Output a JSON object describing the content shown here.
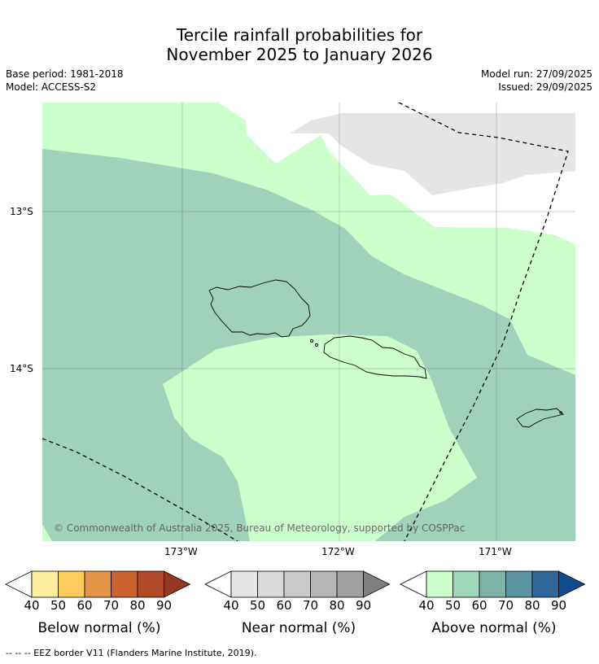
{
  "title": {
    "line1": "Tercile rainfall probabilities for",
    "line2": "November 2025 to January 2026"
  },
  "meta": {
    "base_period": "Base period: 1981-2018",
    "model": "Model: ACCESS-S2",
    "model_run": "Model run: 27/09/2025",
    "issued": "Issued: 29/09/2025"
  },
  "map": {
    "lat_labels": [
      "13°S",
      "14°S"
    ],
    "lon_labels": [
      "173°W",
      "172°W",
      "171°W"
    ],
    "copyright": "© Commonwealth of Australia 2025, Bureau of Meteorology, supported by COSPPac",
    "colors": {
      "above_50": "#9fd1bb",
      "above_40": "#ccffcc",
      "near_40": "#e5e5e5",
      "white": "#ffffff"
    }
  },
  "legend": {
    "tick_values": [
      "40",
      "50",
      "60",
      "70",
      "80",
      "90"
    ],
    "below": {
      "label": "Below normal (%)",
      "colors": [
        "#ffeda0",
        "#fecc5c",
        "#e3964a",
        "#cc6230",
        "#b04a28",
        "#943822"
      ]
    },
    "near": {
      "label": "Near normal (%)",
      "colors": [
        "#e5e5e5",
        "#d9d9d9",
        "#c9c9c9",
        "#b5b5b5",
        "#a0a0a0",
        "#7f7f7f"
      ]
    },
    "above": {
      "label": "Above normal (%)",
      "colors": [
        "#ccffcc",
        "#a0d6b9",
        "#80b3a8",
        "#5c93a0",
        "#336699",
        "#114d8c"
      ]
    }
  },
  "footer": {
    "eez_note": "--  --  -- EEZ border V11 (Flanders Marine Institute, 2019)."
  }
}
